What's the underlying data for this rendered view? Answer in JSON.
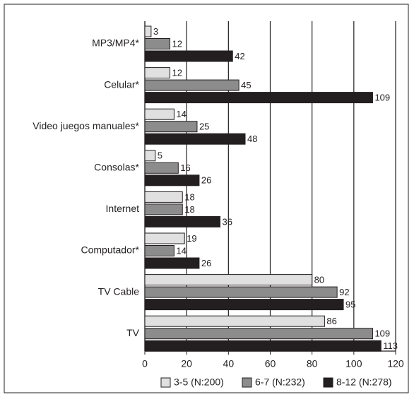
{
  "chart_data": {
    "type": "hbar",
    "categories": [
      "MP3/MP4*",
      "Celular*",
      "Video juegos manuales*",
      "Consolas*",
      "Internet",
      "Computador*",
      "TV Cable",
      "TV"
    ],
    "series": [
      {
        "name": "3-5 (N:200)",
        "color": "#e0e0e0",
        "values": [
          3,
          12,
          14,
          5,
          18,
          19,
          80,
          86
        ]
      },
      {
        "name": "6-7 (N:232)",
        "color": "#8c8c8c",
        "values": [
          12,
          45,
          25,
          16,
          18,
          14,
          92,
          109
        ]
      },
      {
        "name": "8-12 (N:278)",
        "color": "#231f20",
        "values": [
          42,
          109,
          48,
          26,
          36,
          26,
          95,
          113
        ]
      }
    ],
    "xlim": [
      0,
      120
    ],
    "xticks": [
      0,
      20,
      40,
      60,
      80,
      100,
      120
    ],
    "grid": true,
    "legend": "bottom"
  }
}
